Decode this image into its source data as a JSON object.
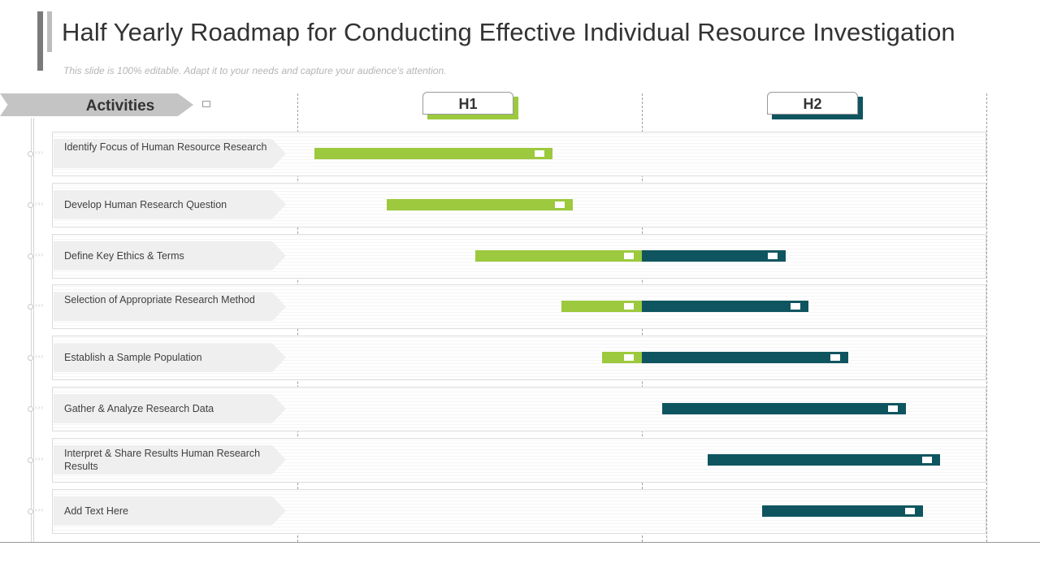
{
  "header": {
    "title": "Half Yearly Roadmap for Conducting Effective Individual Resource Investigation",
    "subtitle": "This slide is 100% editable. Adapt it to your needs and capture your audience's attention."
  },
  "colors": {
    "h1": "#9cc93d",
    "h2": "#0f5560",
    "accent_gray": "#c4c4c4"
  },
  "chart_data": {
    "type": "gantt",
    "title": "Half Yearly Roadmap for Conducting Effective Individual Resource Investigation",
    "category_header": "Activities",
    "periods": [
      "H1",
      "H2"
    ],
    "x_unit": "months",
    "xlim": [
      0,
      12
    ],
    "tasks": [
      {
        "label": "Identify Focus of Human Resource Research",
        "h1": [
          0.3,
          4.45
        ],
        "h2": null
      },
      {
        "label": "Develop Human Research Question",
        "h1": [
          1.55,
          4.8
        ],
        "h2": null
      },
      {
        "label": "Define Key Ethics & Terms",
        "h1": [
          3.1,
          6.0
        ],
        "h2": [
          6.0,
          8.5
        ]
      },
      {
        "label": "Selection of Appropriate Research Method",
        "h1": [
          4.6,
          6.0
        ],
        "h2": [
          6.0,
          8.9
        ]
      },
      {
        "label": "Establish a Sample Population",
        "h1": [
          5.3,
          6.0
        ],
        "h2": [
          6.0,
          9.6
        ]
      },
      {
        "label": "Gather & Analyze Research Data",
        "h1": null,
        "h2": [
          6.35,
          10.6
        ]
      },
      {
        "label": "Interpret & Share Results Human Research Results",
        "h1": null,
        "h2": [
          7.15,
          11.2
        ]
      },
      {
        "label": "Add Text Here",
        "h1": null,
        "h2": [
          8.1,
          10.9
        ]
      }
    ]
  }
}
